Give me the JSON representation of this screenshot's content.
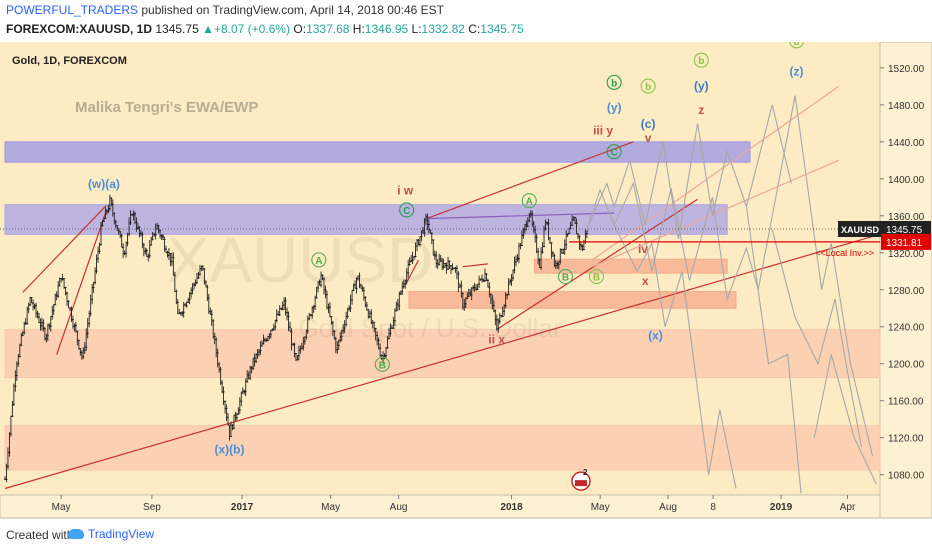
{
  "header": {
    "publisher": "POWERFUL_TRADERS",
    "published_text": " published on TradingView.com, April 14, 2018 00:46 EST",
    "symbol": "FOREXCOM:XAUUSD, 1D",
    "last": "1345.75",
    "change": "+8.07 (+0.6%)",
    "open_label": "O:",
    "open": "1337.68",
    "high_label": "H:",
    "high": "1346.95",
    "low_label": "L:",
    "low": "1332.82",
    "close_label": "C:",
    "close": "1345.75"
  },
  "footer": {
    "created_with": "Created with",
    "brand": "TradingView"
  },
  "chart_data": {
    "type": "candlestick",
    "title": "Gold, 1D, FOREXCOM",
    "subtitle": "Malika Tengri's EWA/EWP",
    "watermark_symbol": "XAUUSD",
    "watermark_desc": "Gold Spot / U.S. Dollar",
    "yaxis": {
      "range": [
        1058,
        1548
      ],
      "ticks": [
        1080,
        1120,
        1160,
        1200,
        1240,
        1280,
        1320,
        1360,
        1400,
        1440,
        1480,
        1520
      ],
      "position": "right"
    },
    "xaxis": {
      "range": [
        "2016-02-15",
        "2019-05-15"
      ],
      "ticks": [
        {
          "date": "2016-05-01",
          "label": "May"
        },
        {
          "date": "2016-09-01",
          "label": "Sep"
        },
        {
          "date": "2017-01-01",
          "label": "2017"
        },
        {
          "date": "2017-05-01",
          "label": "May"
        },
        {
          "date": "2017-08-01",
          "label": "Aug"
        },
        {
          "date": "2018-01-01",
          "label": "2018"
        },
        {
          "date": "2018-05-01",
          "label": "May"
        },
        {
          "date": "2018-08-01",
          "label": "Aug"
        },
        {
          "date": "2018-10-01",
          "label": "8"
        },
        {
          "date": "2019-01-01",
          "label": "2019"
        },
        {
          "date": "2019-04-01",
          "label": "Apr"
        }
      ]
    },
    "price_path": [
      {
        "date": "2016-02-15",
        "price": 1075
      },
      {
        "date": "2016-03-01",
        "price": 1200
      },
      {
        "date": "2016-03-20",
        "price": 1270
      },
      {
        "date": "2016-04-10",
        "price": 1230
      },
      {
        "date": "2016-05-01",
        "price": 1295
      },
      {
        "date": "2016-05-30",
        "price": 1205
      },
      {
        "date": "2016-06-25",
        "price": 1350
      },
      {
        "date": "2016-07-06",
        "price": 1375
      },
      {
        "date": "2016-07-25",
        "price": 1320
      },
      {
        "date": "2016-08-05",
        "price": 1365
      },
      {
        "date": "2016-08-25",
        "price": 1315
      },
      {
        "date": "2016-09-07",
        "price": 1350
      },
      {
        "date": "2016-09-28",
        "price": 1310
      },
      {
        "date": "2016-10-06",
        "price": 1250
      },
      {
        "date": "2016-11-08",
        "price": 1305
      },
      {
        "date": "2016-12-15",
        "price": 1125
      },
      {
        "date": "2017-01-15",
        "price": 1200
      },
      {
        "date": "2017-02-27",
        "price": 1265
      },
      {
        "date": "2017-03-15",
        "price": 1200
      },
      {
        "date": "2017-04-18",
        "price": 1295
      },
      {
        "date": "2017-05-09",
        "price": 1215
      },
      {
        "date": "2017-06-06",
        "price": 1295
      },
      {
        "date": "2017-07-10",
        "price": 1205
      },
      {
        "date": "2017-08-08",
        "price": 1290
      },
      {
        "date": "2017-09-08",
        "price": 1357
      },
      {
        "date": "2017-09-20",
        "price": 1310
      },
      {
        "date": "2017-10-16",
        "price": 1305
      },
      {
        "date": "2017-10-27",
        "price": 1265
      },
      {
        "date": "2017-11-27",
        "price": 1298
      },
      {
        "date": "2017-12-12",
        "price": 1238
      },
      {
        "date": "2018-01-25",
        "price": 1365
      },
      {
        "date": "2018-02-08",
        "price": 1308
      },
      {
        "date": "2018-02-16",
        "price": 1355
      },
      {
        "date": "2018-03-01",
        "price": 1305
      },
      {
        "date": "2018-03-26",
        "price": 1355
      },
      {
        "date": "2018-04-06",
        "price": 1322
      },
      {
        "date": "2018-04-13",
        "price": 1346
      }
    ],
    "last_price": 1345.75,
    "last_price_label": "XAUUSD",
    "local_invalidation": {
      "price": 1331.81,
      "label": "<<Local Inv.>>"
    },
    "zones": [
      {
        "price_from": 1418,
        "price_to": 1440,
        "start": "2016-02-15",
        "end": "2018-11-20",
        "color": "#9a96e6"
      },
      {
        "price_from": 1340,
        "price_to": 1372,
        "start": "2016-02-15",
        "end": "2018-10-20",
        "color": "#a7a2e8"
      },
      {
        "price_from": 1298,
        "price_to": 1313,
        "start": "2018-02-01",
        "end": "2018-10-20",
        "color": "#f4a98c"
      },
      {
        "price_from": 1260,
        "price_to": 1278,
        "start": "2017-08-15",
        "end": "2018-11-01",
        "color": "#f4a98c"
      },
      {
        "price_from": 1185,
        "price_to": 1237,
        "start": "2016-02-15",
        "end": "2019-05-15",
        "color": "#f9c7ae"
      },
      {
        "price_from": 1085,
        "price_to": 1133,
        "start": "2016-02-15",
        "end": "2019-05-15",
        "color": "#f9c7ae"
      }
    ],
    "trendlines": [
      {
        "points": [
          [
            "2016-02-15",
            1065
          ],
          [
            "2019-05-15",
            1340
          ]
        ],
        "color": "#c83232"
      },
      {
        "points": [
          [
            "2016-03-10",
            1277
          ],
          [
            "2016-07-01",
            1371
          ]
        ],
        "color": "#c83232"
      },
      {
        "points": [
          [
            "2016-04-25",
            1210
          ],
          [
            "2016-07-01",
            1365
          ]
        ],
        "color": "#c83232"
      },
      {
        "points": [
          [
            "2017-09-08",
            1357
          ],
          [
            "2018-06-15",
            1440
          ]
        ],
        "color": "#c83232"
      },
      {
        "points": [
          [
            "2017-12-12",
            1237
          ],
          [
            "2018-09-10",
            1378
          ]
        ],
        "color": "#c83232"
      },
      {
        "points": [
          [
            "2017-08-10",
            1285
          ],
          [
            "2017-08-28",
            1312
          ]
        ],
        "color": "#c83232"
      },
      {
        "points": [
          [
            "2017-10-27",
            1305
          ],
          [
            "2017-11-30",
            1308
          ]
        ],
        "color": "#c83232"
      },
      {
        "points": [
          [
            "2017-09-08",
            1357
          ],
          [
            "2018-05-20",
            1363
          ]
        ],
        "color": "#8b5fbf"
      },
      {
        "points": [
          [
            "2018-04-20",
            1305
          ],
          [
            "2019-03-20",
            1420
          ]
        ],
        "color": "#e9a89a"
      },
      {
        "points": [
          [
            "2018-04-20",
            1312
          ],
          [
            "2019-03-20",
            1500
          ]
        ],
        "color": "#e9a89a"
      }
    ],
    "projection_paths": [
      [
        [
          "2018-04-13",
          1346
        ],
        [
          "2018-05-10",
          1395
        ],
        [
          "2018-05-20",
          1370
        ],
        [
          "2018-06-10",
          1420
        ],
        [
          "2018-07-01",
          1350
        ],
        [
          "2018-07-25",
          1440
        ],
        [
          "2018-08-15",
          1335
        ],
        [
          "2018-09-10",
          1460
        ],
        [
          "2018-09-30",
          1360
        ],
        [
          "2018-10-20",
          1430
        ],
        [
          "2018-11-15",
          1370
        ],
        [
          "2018-12-20",
          1480
        ],
        [
          "2019-01-15",
          1395
        ]
      ],
      [
        [
          "2018-04-13",
          1346
        ],
        [
          "2018-05-01",
          1388
        ],
        [
          "2018-05-20",
          1350
        ],
        [
          "2018-06-15",
          1395
        ],
        [
          "2018-07-10",
          1300
        ],
        [
          "2018-08-05",
          1390
        ],
        [
          "2018-08-30",
          1290
        ],
        [
          "2018-09-30",
          1380
        ],
        [
          "2018-10-20",
          1270
        ],
        [
          "2018-11-15",
          1325
        ],
        [
          "2018-12-01",
          1280
        ],
        [
          "2019-01-20",
          1490
        ],
        [
          "2019-02-25",
          1280
        ],
        [
          "2019-03-10",
          1330
        ],
        [
          "2019-04-05",
          1200
        ],
        [
          "2019-05-05",
          1100
        ]
      ],
      [
        [
          "2018-05-20",
          1350
        ],
        [
          "2018-06-20",
          1300
        ],
        [
          "2018-07-10",
          1330
        ],
        [
          "2018-07-28",
          1240
        ],
        [
          "2018-08-20",
          1300
        ],
        [
          "2018-09-25",
          1080
        ],
        [
          "2018-10-10",
          1150
        ],
        [
          "2018-11-01",
          1065
        ]
      ],
      [
        [
          "2018-11-15",
          1370
        ],
        [
          "2018-12-15",
          1200
        ],
        [
          "2019-01-10",
          1210
        ],
        [
          "2019-01-28",
          1060
        ]
      ],
      [
        [
          "2018-12-20",
          1345
        ],
        [
          "2019-01-20",
          1250
        ],
        [
          "2019-02-20",
          1200
        ],
        [
          "2019-03-15",
          1270
        ],
        [
          "2019-03-30",
          1200
        ],
        [
          "2019-04-20",
          1110
        ]
      ],
      [
        [
          "2019-02-15",
          1120
        ],
        [
          "2019-03-10",
          1210
        ],
        [
          "2019-04-10",
          1120
        ],
        [
          "2019-05-10",
          1070
        ]
      ]
    ],
    "wave_labels": [
      {
        "text": "(w)(a)",
        "date": "2016-06-28",
        "price": 1390,
        "color": "#4a90d9"
      },
      {
        "text": "(x)(b)",
        "date": "2016-12-15",
        "price": 1103,
        "color": "#4a90d9"
      },
      {
        "text": "i w",
        "date": "2017-08-10",
        "price": 1383,
        "color": "#c0504d"
      },
      {
        "text": "C",
        "date": "2017-08-12",
        "price": 1362,
        "color": "#2d9b4e",
        "circled": true
      },
      {
        "text": "A",
        "date": "2017-04-15",
        "price": 1308,
        "color": "#4caf50",
        "circled": true
      },
      {
        "text": "B",
        "date": "2017-07-10",
        "price": 1195,
        "color": "#4caf50",
        "circled": true
      },
      {
        "text": "ii x",
        "date": "2017-12-12",
        "price": 1222,
        "color": "#c0504d"
      },
      {
        "text": "A",
        "date": "2018-01-25",
        "price": 1372,
        "color": "#4caf50",
        "circled": true
      },
      {
        "text": "B",
        "date": "2018-03-15",
        "price": 1290,
        "color": "#4caf50",
        "circled": true
      },
      {
        "text": "B",
        "date": "2018-04-26",
        "price": 1290,
        "color": "#8bc34a",
        "circled": true
      },
      {
        "text": "iii y",
        "date": "2018-05-05",
        "price": 1448,
        "color": "#c0504d"
      },
      {
        "text": "C",
        "date": "2018-05-20",
        "price": 1425,
        "color": "#2d9b4e",
        "circled": true
      },
      {
        "text": "b",
        "date": "2018-05-20",
        "price": 1500,
        "color": "#2d9b4e",
        "circled": true
      },
      {
        "text": "(y)",
        "date": "2018-05-20",
        "price": 1473,
        "color": "#4a90d9"
      },
      {
        "text": "b",
        "date": "2018-07-05",
        "price": 1496,
        "color": "#8bc34a",
        "circled": true
      },
      {
        "text": "(c)",
        "date": "2018-07-05",
        "price": 1455,
        "color": "#3a7bc8"
      },
      {
        "text": "v",
        "date": "2018-07-05",
        "price": 1440,
        "color": "#c0504d"
      },
      {
        "text": "iv",
        "date": "2018-06-28",
        "price": 1320,
        "color": "#c0504d"
      },
      {
        "text": "x",
        "date": "2018-07-01",
        "price": 1285,
        "color": "#c0504d"
      },
      {
        "text": "(x)",
        "date": "2018-07-15",
        "price": 1226,
        "color": "#4a90d9"
      },
      {
        "text": "b",
        "date": "2018-09-15",
        "price": 1524,
        "color": "#8bc34a",
        "circled": true
      },
      {
        "text": "(y)",
        "date": "2018-09-15",
        "price": 1496,
        "color": "#3a7bc8"
      },
      {
        "text": "z",
        "date": "2018-09-15",
        "price": 1470,
        "color": "#c0504d"
      },
      {
        "text": "b",
        "date": "2019-01-22",
        "price": 1545,
        "color": "#8bc34a",
        "circled": true
      },
      {
        "text": "(z)",
        "date": "2019-01-22",
        "price": 1512,
        "color": "#4a90d9"
      }
    ],
    "event_marker": {
      "text": "2",
      "date": "2018-04-05",
      "price": 1073
    },
    "grid": false,
    "colors": {
      "background": "#fdebc3",
      "axis_background": "#fdf1d4",
      "candle": "#222222",
      "last_price_box": "#222222",
      "invalidation": "#e00000",
      "projection": "#a8a8a8"
    }
  }
}
